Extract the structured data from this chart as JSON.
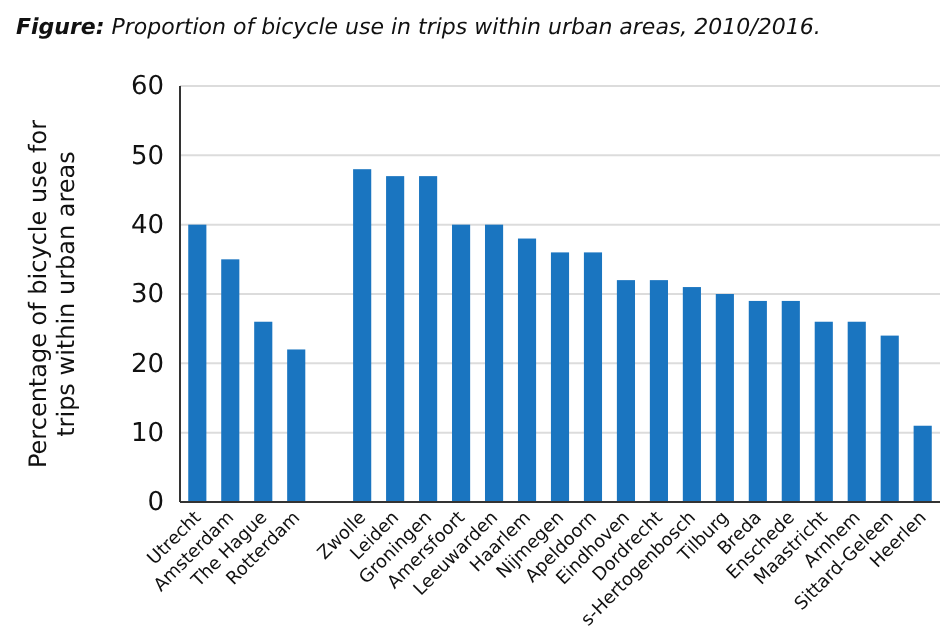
{
  "chart_data": {
    "type": "bar",
    "title": "Figure: Proportion of bicycle use in trips within urban areas, 2010/2016.",
    "ylabel": "Percentage of bicycle use for trips within urban areas",
    "categories": [
      "Utrecht",
      "Amsterdam",
      "The Hague",
      "Rotterdam",
      null,
      "Zwolle",
      "Leiden",
      "Groningen",
      "Amersfoort",
      "Leeuwarden",
      "Haarlem",
      "Nijmegen",
      "Apeldoorn",
      "Eindhoven",
      "Dordrecht",
      "s-Hertogenbosch",
      "Tilburg",
      "Breda",
      "Enschede",
      "Maastricht",
      "Arnhem",
      "Sittard-Geleen",
      "Heerlen"
    ],
    "values": [
      40,
      35,
      26,
      22,
      null,
      48,
      47,
      47,
      40,
      40,
      38,
      36,
      36,
      32,
      32,
      31,
      30,
      29,
      29,
      26,
      26,
      24,
      11
    ],
    "color": "#1a75c0",
    "ylim": [
      0,
      60
    ],
    "yticks": [
      0,
      10,
      20,
      30,
      40,
      50,
      60
    ],
    "grid": "y"
  }
}
